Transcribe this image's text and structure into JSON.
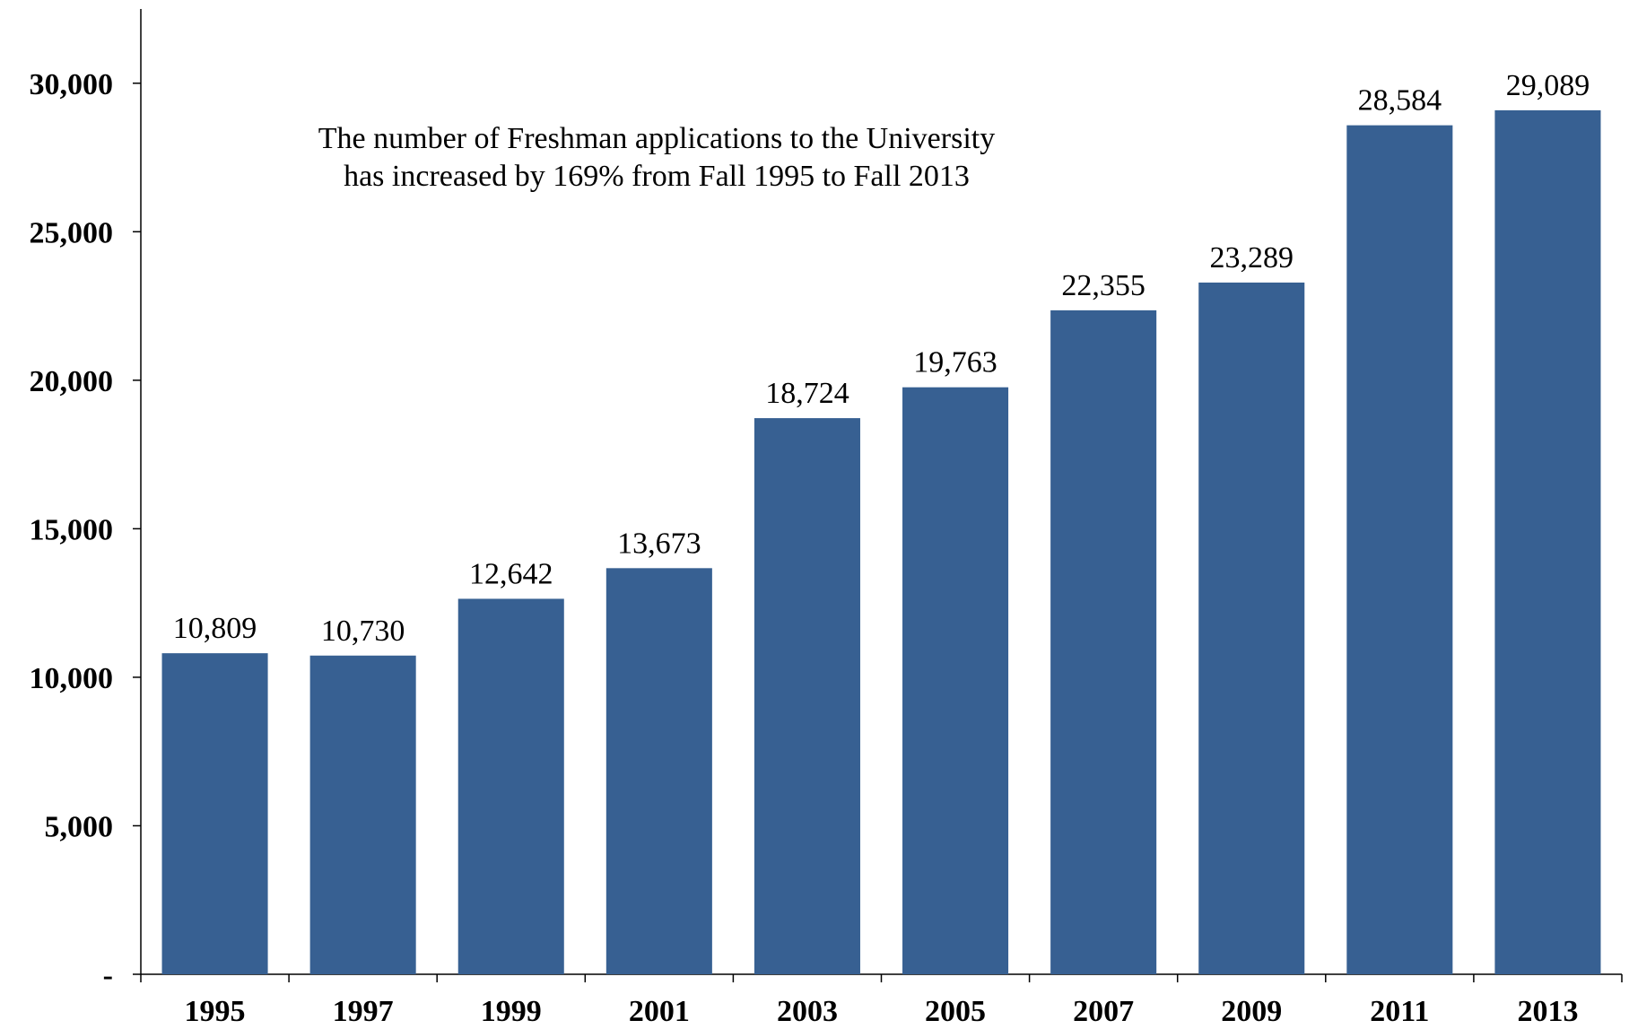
{
  "chart_data": {
    "type": "bar",
    "categories": [
      "1995",
      "1997",
      "1999",
      "2001",
      "2003",
      "2005",
      "2007",
      "2009",
      "2011",
      "2013"
    ],
    "values": [
      10809,
      10730,
      12642,
      13673,
      18724,
      19763,
      22355,
      23289,
      28584,
      29089
    ],
    "data_labels": [
      "10,809",
      "10,730",
      "12,642",
      "13,673",
      "18,724",
      "19,763",
      "22,355",
      "23,289",
      "28,584",
      "29,089"
    ],
    "ylim": [
      0,
      32500
    ],
    "yticks": [
      0,
      5000,
      10000,
      15000,
      20000,
      25000,
      30000
    ],
    "ytick_labels": [
      "-",
      "5,000",
      "10,000",
      "15,000",
      "20,000",
      "25,000",
      "30,000"
    ],
    "annotation": [
      "The number of Freshman applications to the University",
      "has increased by 169% from Fall 1995 to Fall 2013"
    ],
    "bar_color": "#376092",
    "grid": false,
    "legend": "none"
  }
}
